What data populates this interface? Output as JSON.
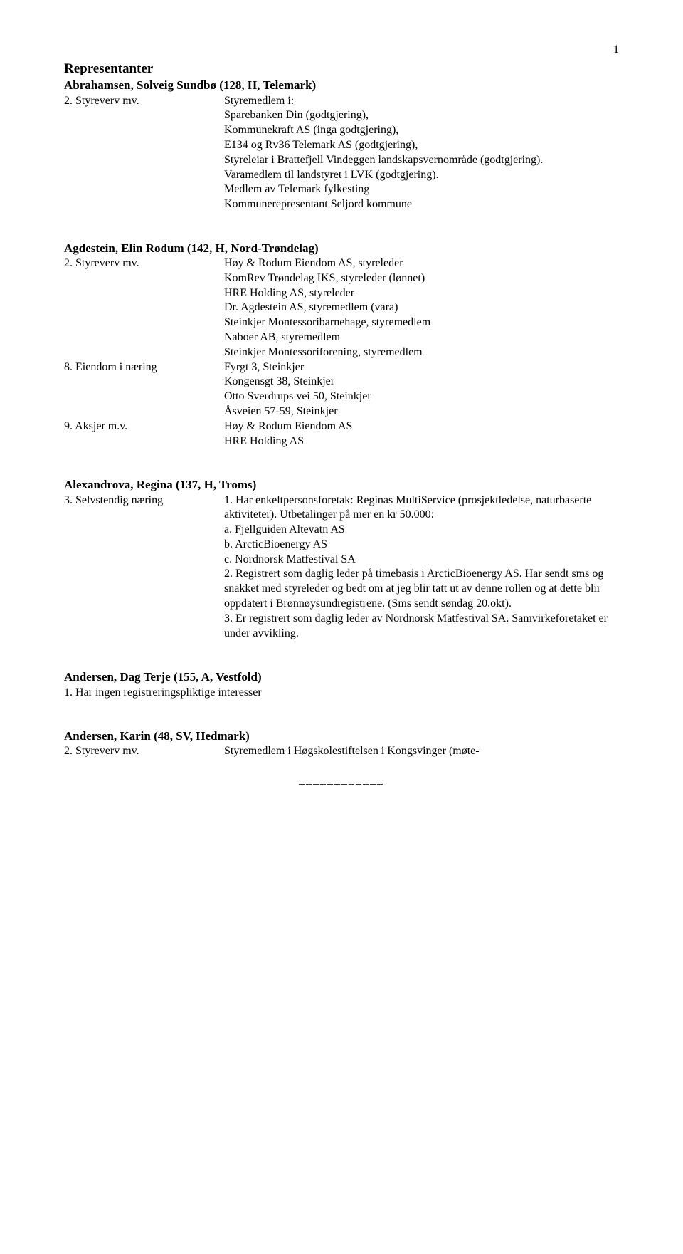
{
  "page_number": "1",
  "section_header": "Representanter",
  "people": [
    {
      "title": "Abrahamsen, Solveig Sundbø (128, H, Telemark)",
      "items": [
        {
          "label": "2.   Styreverv mv.",
          "value": "Styremedlem i:"
        }
      ],
      "continuation": [
        "Sparebanken Din (godtgjering),",
        "Kommunekraft AS (inga godtgjering),",
        "E134 og Rv36 Telemark AS (godtgjering),",
        "Styreleiar i Brattefjell Vindeggen landskapsvernområde (godtgjering).",
        "Varamedlem til landstyret i LVK (godtgjering).",
        "Medlem av Telemark fylkesting",
        "Kommunerepresentant Seljord kommune"
      ]
    },
    {
      "title": "Agdestein, Elin Rodum (142, H, Nord-Trøndelag)",
      "items": [
        {
          "label": "2.   Styreverv mv.",
          "value": "Høy & Rodum Eiendom AS, styreleder"
        }
      ],
      "continuation": [
        "KomRev Trøndelag IKS, styreleder (lønnet)",
        "HRE Holding AS, styreleder",
        "Dr. Agdestein AS, styremedlem (vara)",
        "Steinkjer Montessoribarnehage, styremedlem",
        "Naboer AB, styremedlem",
        "Steinkjer Montessoriforening, styremedlem"
      ],
      "items2": [
        {
          "label": "8.   Eiendom i næring",
          "value": "Fyrgt 3, Steinkjer"
        }
      ],
      "continuation2": [
        "Kongensgt 38, Steinkjer",
        "Otto Sverdrups vei 50, Steinkjer",
        "Åsveien 57-59, Steinkjer"
      ],
      "items3": [
        {
          "label": "9.   Aksjer m.v.",
          "value": "Høy & Rodum Eiendom AS"
        }
      ],
      "continuation3": [
        "HRE Holding AS"
      ]
    },
    {
      "title": "Alexandrova, Regina (137, H, Troms)",
      "items": [
        {
          "label": "3.   Selvstendig næring",
          "value": "1. Har enkeltpersonsforetak: Reginas MultiService (prosjektledelse, naturbaserte aktiviteter). Utbetalinger på mer en kr 50.000:"
        }
      ],
      "continuation": [
        "a. Fjellguiden Altevatn AS",
        "b. ArcticBioenergy AS",
        "c. Nordnorsk Matfestival SA",
        "2. Registrert som daglig leder på timebasis i ArcticBioenergy AS. Har sendt sms og snakket med styreleder og bedt om at jeg blir tatt ut av denne rollen og at dette blir oppdatert i Brønnøysundregistrene. (Sms sendt søndag 20.okt).",
        "3. Er registrert som daglig leder av Nordnorsk Matfestival SA. Samvirkeforetaket er under avvikling."
      ]
    },
    {
      "title": "Andersen, Dag Terje (155, A, Vestfold)",
      "items": [
        {
          "label": "1.   Har ingen registreringspliktige interesser",
          "value": ""
        }
      ]
    },
    {
      "title": "Andersen, Karin (48, SV, Hedmark)",
      "items": [
        {
          "label": "2.   Styreverv mv.",
          "value": "Styremedlem i Høgskolestiftelsen i Kongsvinger (møte-"
        }
      ]
    }
  ],
  "divider": "____________"
}
